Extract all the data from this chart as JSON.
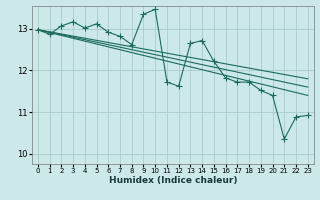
{
  "xlabel": "Humidex (Indice chaleur)",
  "bg_color": "#cce8e8",
  "grid_color": "#aacccc",
  "line_color": "#1a6b5a",
  "xlim": [
    -0.5,
    23.5
  ],
  "ylim": [
    9.75,
    13.55
  ],
  "xticks": [
    0,
    1,
    2,
    3,
    4,
    5,
    6,
    7,
    8,
    9,
    10,
    11,
    12,
    13,
    14,
    15,
    16,
    17,
    18,
    19,
    20,
    21,
    22,
    23
  ],
  "yticks": [
    10,
    11,
    12,
    13
  ],
  "data_x": [
    0,
    1,
    2,
    3,
    4,
    5,
    6,
    7,
    8,
    9,
    10,
    11,
    12,
    13,
    14,
    15,
    16,
    17,
    18,
    19,
    20,
    21,
    22,
    23
  ],
  "data_y": [
    12.98,
    12.87,
    13.07,
    13.17,
    13.02,
    13.12,
    12.92,
    12.82,
    12.62,
    13.35,
    13.47,
    11.72,
    11.62,
    12.65,
    12.72,
    12.22,
    11.82,
    11.72,
    11.72,
    11.52,
    11.4,
    10.35,
    10.88,
    10.92
  ],
  "trend1_x": [
    0,
    23
  ],
  "trend1_y": [
    12.98,
    11.8
  ],
  "trend2_x": [
    0,
    23
  ],
  "trend2_y": [
    12.98,
    11.6
  ],
  "trend3_x": [
    0,
    23
  ],
  "trend3_y": [
    12.98,
    11.4
  ],
  "marker": "+",
  "markersize": 4,
  "linewidth": 0.8
}
